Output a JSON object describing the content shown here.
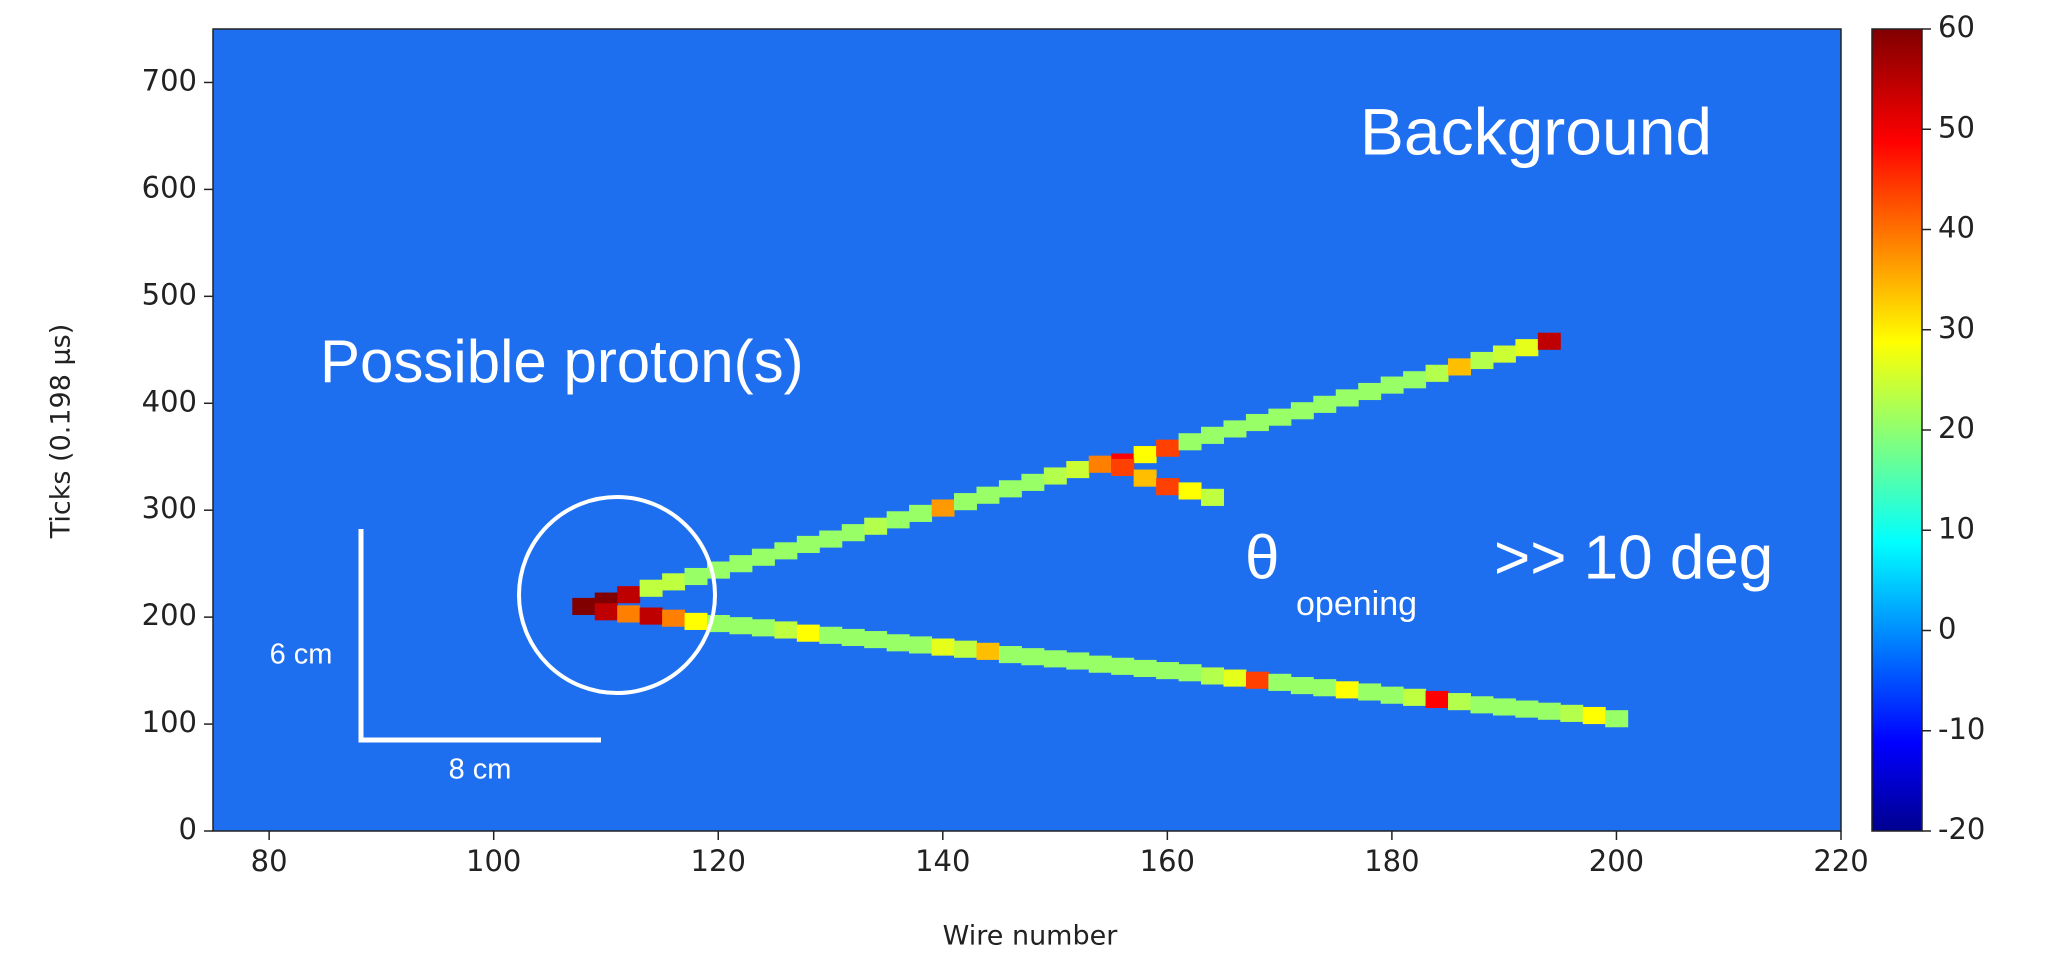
{
  "chart_data": {
    "type": "heatmap",
    "xlabel": "Wire number",
    "ylabel": "Ticks (0.198 μs)",
    "xlim": [
      75,
      220
    ],
    "xticks": [
      80,
      100,
      120,
      140,
      160,
      180,
      200,
      220
    ],
    "ylim": [
      0,
      750
    ],
    "yticks": [
      0,
      100,
      200,
      300,
      400,
      500,
      600,
      700
    ],
    "clim": [
      -20,
      60
    ],
    "cticks": [
      -20,
      -10,
      0,
      10,
      20,
      30,
      40,
      50,
      60
    ],
    "colormap": "jet",
    "tracks": [
      {
        "x": [
          110,
          112,
          114,
          116,
          118,
          120,
          122,
          124,
          126,
          128,
          130,
          132,
          134,
          136,
          138,
          140,
          142,
          144,
          146,
          148,
          150,
          152,
          154,
          156,
          158,
          160,
          162,
          164,
          166,
          168,
          170,
          172,
          174,
          176,
          178,
          180,
          182,
          184,
          186,
          188,
          190,
          192,
          194
        ],
        "y": [
          215,
          221,
          227,
          233,
          238,
          244,
          250,
          256,
          262,
          268,
          273,
          279,
          285,
          291,
          297,
          302,
          308,
          314,
          320,
          326,
          332,
          338,
          343,
          345,
          352,
          358,
          364,
          370,
          376,
          382,
          387,
          393,
          399,
          405,
          411,
          417,
          422,
          428,
          434,
          440,
          446,
          452,
          458
        ],
        "values": [
          60,
          55,
          25,
          25,
          22,
          22,
          22,
          22,
          22,
          22,
          22,
          22,
          24,
          22,
          22,
          38,
          22,
          22,
          22,
          22,
          24,
          26,
          40,
          50,
          30,
          45,
          22,
          22,
          22,
          22,
          22,
          22,
          22,
          22,
          22,
          22,
          22,
          24,
          35,
          24,
          26,
          28,
          55
        ]
      },
      {
        "x": [
          156,
          158,
          160,
          162,
          164
        ],
        "y": [
          340,
          330,
          322,
          318,
          312
        ],
        "values": [
          45,
          35,
          45,
          30,
          25
        ]
      },
      {
        "x": [
          108,
          110,
          112,
          114,
          116,
          118,
          120,
          122,
          124,
          126,
          128,
          130,
          132,
          134,
          136,
          138,
          140,
          142,
          144,
          146,
          148,
          150,
          152,
          154,
          156,
          158,
          160,
          162,
          164,
          166,
          168,
          170,
          172,
          174,
          176,
          178,
          180,
          182,
          184,
          186,
          188,
          190,
          192,
          194,
          196,
          198,
          200
        ],
        "y": [
          210,
          205,
          203,
          201,
          199,
          196,
          194,
          192,
          190,
          188,
          185,
          183,
          181,
          179,
          176,
          174,
          172,
          170,
          168,
          165,
          163,
          161,
          159,
          156,
          154,
          152,
          150,
          148,
          145,
          143,
          141,
          139,
          136,
          134,
          132,
          130,
          127,
          125,
          123,
          121,
          118,
          116,
          114,
          112,
          110,
          108,
          105
        ],
        "values": [
          60,
          55,
          40,
          55,
          40,
          30,
          22,
          22,
          22,
          25,
          30,
          22,
          22,
          22,
          22,
          22,
          28,
          25,
          35,
          22,
          22,
          22,
          22,
          22,
          22,
          22,
          22,
          22,
          24,
          28,
          45,
          22,
          22,
          22,
          30,
          22,
          22,
          25,
          50,
          24,
          22,
          22,
          22,
          22,
          24,
          30,
          22
        ]
      }
    ],
    "annotations": {
      "background": "Background",
      "proton": "Possible proton(s)",
      "theta": "θ",
      "theta_sub": "opening",
      "angle": ">> 10 deg",
      "scale_y": "6 cm",
      "scale_x": "8 cm"
    }
  }
}
